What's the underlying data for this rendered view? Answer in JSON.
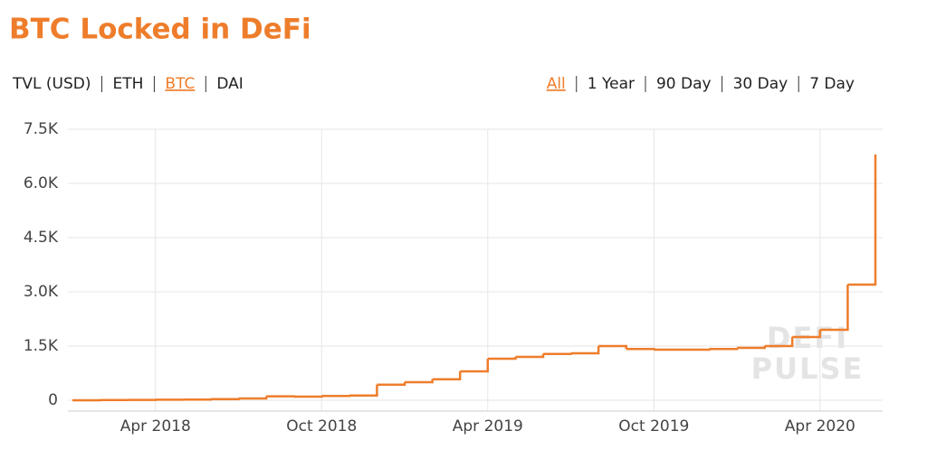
{
  "chart_data": {
    "type": "line",
    "title": "BTC Locked in DeFi",
    "unit_tabs": [
      "TVL (USD)",
      "ETH",
      "BTC",
      "DAI"
    ],
    "active_unit": 2,
    "range_tabs": [
      "All",
      "1 Year",
      "90 Day",
      "30 Day",
      "7 Day"
    ],
    "active_range": 0,
    "watermark": [
      "DEFI",
      "PULSE"
    ],
    "x": [
      "2018-01",
      "2018-02",
      "2018-03",
      "2018-04",
      "2018-05",
      "2018-06",
      "2018-07",
      "2018-08",
      "2018-09",
      "2018-10",
      "2018-11",
      "2018-12",
      "2019-01",
      "2019-02",
      "2019-03",
      "2019-04",
      "2019-05",
      "2019-06",
      "2019-07",
      "2019-08",
      "2019-09",
      "2019-10",
      "2019-11",
      "2019-12",
      "2020-01",
      "2020-02",
      "2020-03",
      "2020-04",
      "2020-05",
      "2020-06"
    ],
    "series": [
      {
        "name": "BTC",
        "color": "#ee7d2b",
        "values": [
          0,
          5,
          10,
          15,
          20,
          30,
          50,
          110,
          100,
          120,
          130,
          430,
          500,
          580,
          800,
          1150,
          1200,
          1280,
          1300,
          1500,
          1420,
          1400,
          1400,
          1420,
          1450,
          1500,
          1750,
          1950,
          3200,
          6800
        ]
      }
    ],
    "xlim": [
      "2018-01",
      "2020-06"
    ],
    "xticks": [
      {
        "value": "2018-04",
        "label": "Apr 2018"
      },
      {
        "value": "2018-10",
        "label": "Oct 2018"
      },
      {
        "value": "2019-04",
        "label": "Apr 2019"
      },
      {
        "value": "2019-10",
        "label": "Oct 2019"
      },
      {
        "value": "2020-04",
        "label": "Apr 2020"
      }
    ],
    "ylim": [
      -300,
      7500
    ],
    "yticks": [
      0,
      {
        "value": 1500,
        "label": "1.5K"
      },
      {
        "value": 3000,
        "label": "3.0K"
      },
      {
        "value": 4500,
        "label": "4.5K"
      },
      {
        "value": 6000,
        "label": "6.0K"
      },
      {
        "value": 7500,
        "label": "7.5K"
      }
    ],
    "grid": true
  }
}
